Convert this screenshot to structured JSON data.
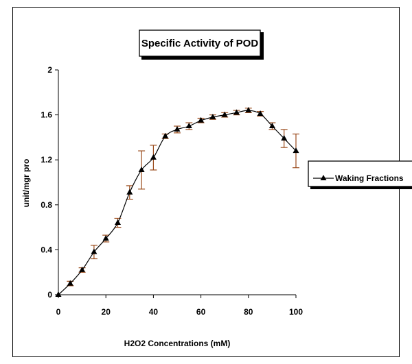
{
  "chart_data": {
    "type": "line",
    "title": "Specific Activity of POD",
    "xlabel": "H2O2 Concentrations (mM)",
    "ylabel": "unit/mgr pro",
    "xlim": [
      0,
      100
    ],
    "ylim": [
      0,
      2
    ],
    "x_ticks": [
      0,
      20,
      40,
      60,
      80,
      100
    ],
    "y_ticks": [
      0,
      0.4,
      0.8,
      1.2,
      1.6,
      2
    ],
    "x_tick_labels": [
      "0",
      "20",
      "40",
      "60",
      "80",
      "100"
    ],
    "y_tick_labels": [
      "0",
      "0.4",
      "0.8",
      "1.2",
      "1.6",
      "2"
    ],
    "grid": false,
    "legend_position": "right",
    "x": [
      0,
      5,
      10,
      15,
      20,
      25,
      30,
      35,
      40,
      45,
      50,
      55,
      60,
      65,
      70,
      75,
      80,
      85,
      90,
      95,
      100
    ],
    "series": [
      {
        "name": "Waking Fractions",
        "marker": "triangle",
        "color": "#000000",
        "values": [
          0,
          0.1,
          0.22,
          0.38,
          0.5,
          0.64,
          0.91,
          1.11,
          1.22,
          1.41,
          1.47,
          1.5,
          1.55,
          1.58,
          1.6,
          1.62,
          1.64,
          1.61,
          1.5,
          1.39,
          1.28
        ],
        "error": [
          0,
          0.02,
          0.02,
          0.06,
          0.03,
          0.04,
          0.06,
          0.17,
          0.11,
          0.02,
          0.03,
          0.03,
          0.02,
          0.02,
          0.02,
          0.02,
          0.02,
          0.02,
          0.03,
          0.08,
          0.15
        ]
      }
    ],
    "error_bar_color": "#9a4a1a"
  }
}
